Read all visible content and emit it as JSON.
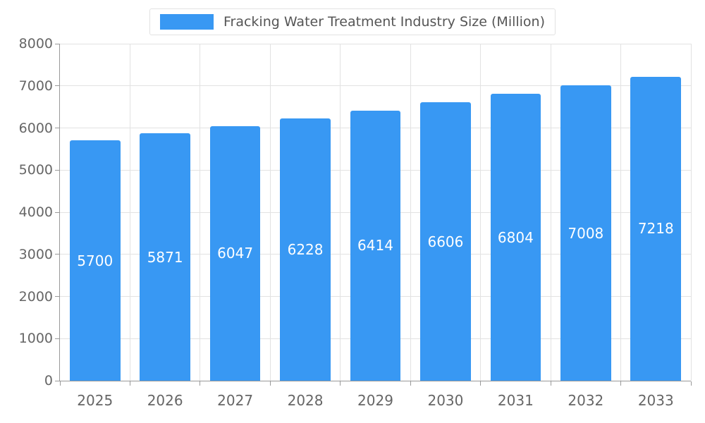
{
  "legend": {
    "label": "Fracking Water Treatment Industry Size (Million)"
  },
  "chart_data": {
    "type": "bar",
    "title": "Fracking Water Treatment Industry Size (Million)",
    "categories": [
      "2025",
      "2026",
      "2027",
      "2028",
      "2029",
      "2030",
      "2031",
      "2032",
      "2033"
    ],
    "values": [
      5700,
      5871,
      6047,
      6228,
      6414,
      6606,
      6804,
      7008,
      7218
    ],
    "xlabel": "",
    "ylabel": "",
    "ylim": [
      0,
      8000
    ],
    "ytick_interval": 1000,
    "yticks": [
      "0",
      "1000",
      "2000",
      "3000",
      "4000",
      "5000",
      "6000",
      "7000",
      "8000"
    ],
    "grid": true,
    "legend_position": "top-center",
    "bar_labels_inside": true,
    "colors": {
      "bar": "#3898f3",
      "bar_label": "#ffffff",
      "axis_text": "#666666",
      "legend_text": "#555555",
      "gridline": "#e2e2e2",
      "axis_line": "#999999"
    }
  }
}
